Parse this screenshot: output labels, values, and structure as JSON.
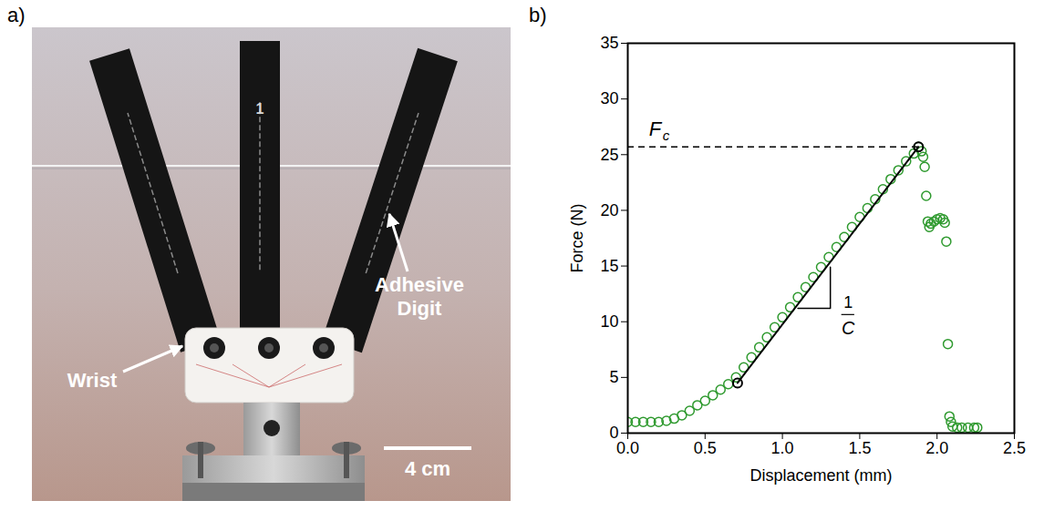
{
  "panel_labels": [
    "a)",
    "b)"
  ],
  "photo": {
    "labels": [
      "Wrist",
      "Adhesive Digit"
    ],
    "digit_label": "1",
    "scale_bar": "4 cm"
  },
  "chart_data": {
    "type": "scatter",
    "x_label": "Displacement (mm)",
    "y_label": "Force (N)",
    "color": "#2f9a2f",
    "marker": "circle_open",
    "x": [
      0.0,
      0.05,
      0.1,
      0.15,
      0.2,
      0.25,
      0.3,
      0.35,
      0.4,
      0.45,
      0.5,
      0.55,
      0.6,
      0.65,
      0.7,
      0.75,
      0.8,
      0.85,
      0.9,
      0.95,
      1.0,
      1.05,
      1.1,
      1.15,
      1.2,
      1.25,
      1.3,
      1.35,
      1.4,
      1.45,
      1.5,
      1.55,
      1.6,
      1.65,
      1.7,
      1.75,
      1.8,
      1.85,
      1.88,
      1.9,
      1.91,
      1.92,
      1.93,
      1.94,
      1.95,
      1.96,
      1.98,
      2.0,
      2.02,
      2.04,
      2.05,
      2.06,
      2.07,
      2.08,
      2.09,
      2.1,
      2.13,
      2.16,
      2.2,
      2.24,
      2.26
    ],
    "values": [
      1.0,
      1.0,
      1.0,
      1.0,
      1.0,
      1.1,
      1.3,
      1.6,
      2.0,
      2.5,
      2.9,
      3.4,
      3.9,
      4.4,
      5.0,
      5.9,
      6.8,
      7.7,
      8.6,
      9.5,
      10.4,
      11.3,
      12.2,
      13.1,
      14.0,
      14.9,
      15.8,
      16.7,
      17.6,
      18.5,
      19.4,
      20.2,
      21.0,
      21.9,
      22.8,
      23.6,
      24.4,
      25.1,
      25.7,
      25.3,
      24.8,
      23.9,
      21.3,
      19.0,
      18.5,
      18.8,
      19.0,
      19.2,
      19.3,
      19.2,
      18.9,
      17.2,
      8.0,
      1.5,
      1.0,
      0.6,
      0.5,
      0.5,
      0.5,
      0.5,
      0.5
    ],
    "fit_line": {
      "x": [
        0.71,
        1.88
      ],
      "y": [
        4.5,
        25.7
      ]
    },
    "critical_force": {
      "label": "F",
      "label_subscript": "c",
      "value": 25.7
    },
    "slope_triangle": {
      "x": [
        1.1,
        1.31
      ],
      "y": [
        11.2,
        14.9
      ],
      "label_numerator": "1",
      "label_denominator": "C"
    },
    "xlim": [
      0,
      2.5
    ],
    "xticks": [
      {
        "value": 0,
        "label": "0.0"
      },
      0.5,
      {
        "value": 1,
        "label": "1.0"
      },
      1.5,
      {
        "value": 2,
        "label": "2.0"
      },
      2.5
    ],
    "ylim": [
      0,
      35
    ],
    "yticks": [
      0,
      5,
      10,
      15,
      20,
      25,
      30,
      35
    ],
    "grid": false
  }
}
